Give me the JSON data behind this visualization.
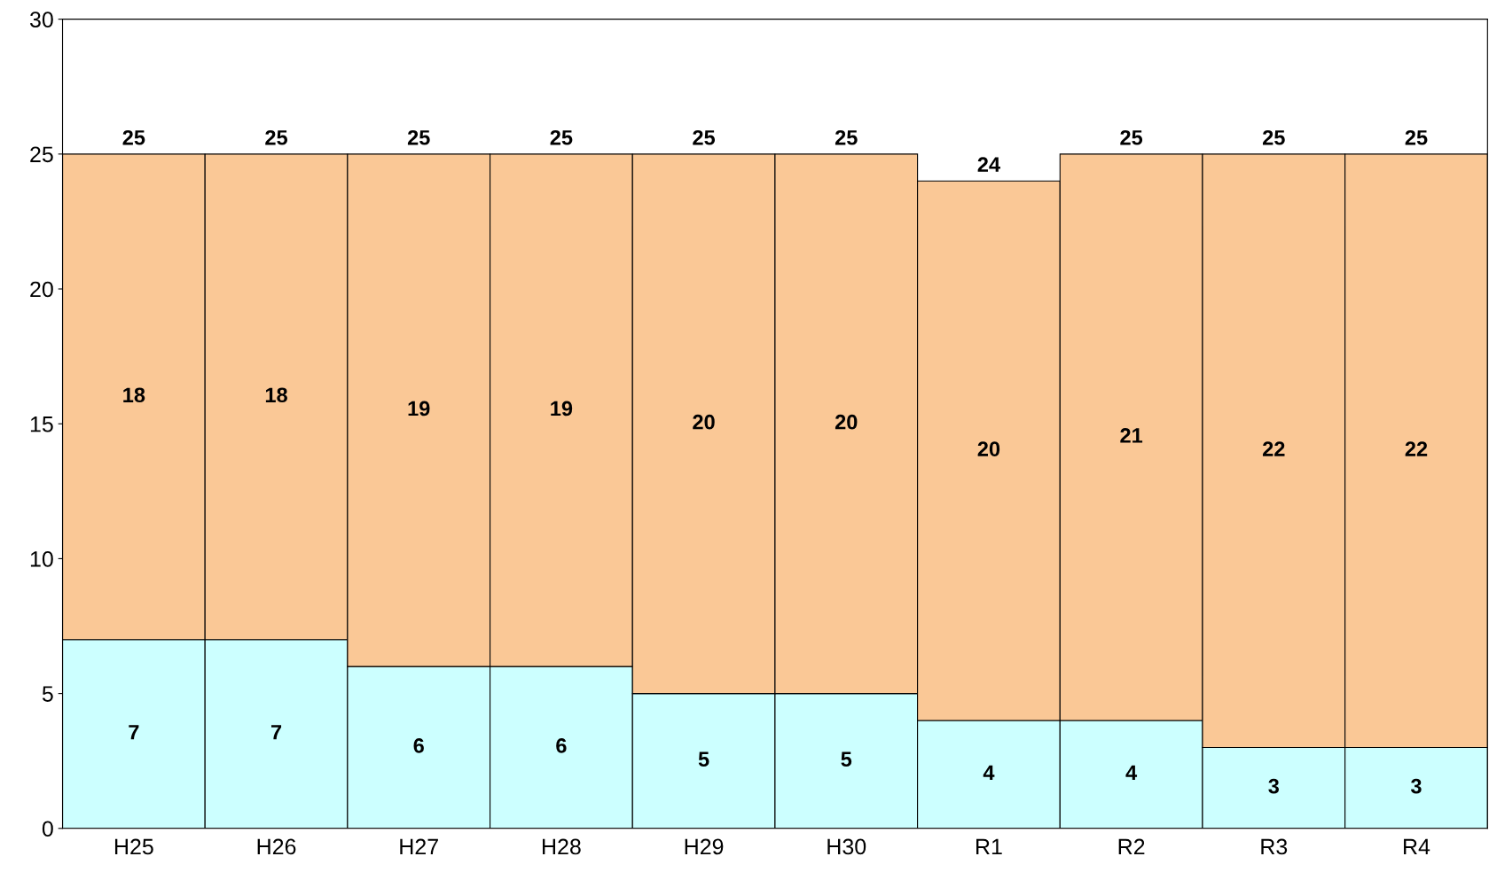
{
  "chart_data": {
    "type": "bar",
    "stacked": true,
    "categories": [
      "H25",
      "H26",
      "H27",
      "H28",
      "H29",
      "H30",
      "R1",
      "R2",
      "R3",
      "R4"
    ],
    "series": [
      {
        "color": "#ccffff",
        "values": [
          7,
          7,
          6,
          6,
          5,
          5,
          4,
          4,
          3,
          3
        ]
      },
      {
        "color": "#fac896",
        "values": [
          18,
          18,
          19,
          19,
          20,
          20,
          20,
          21,
          22,
          22
        ]
      }
    ],
    "totals": [
      "25",
      "25",
      "25",
      "25",
      "25",
      "25",
      "24",
      "25",
      "25",
      "25"
    ],
    "data_labels": true,
    "ylim": [
      0,
      30
    ],
    "yticks": [
      0,
      5,
      10,
      15,
      20,
      25,
      30
    ]
  }
}
